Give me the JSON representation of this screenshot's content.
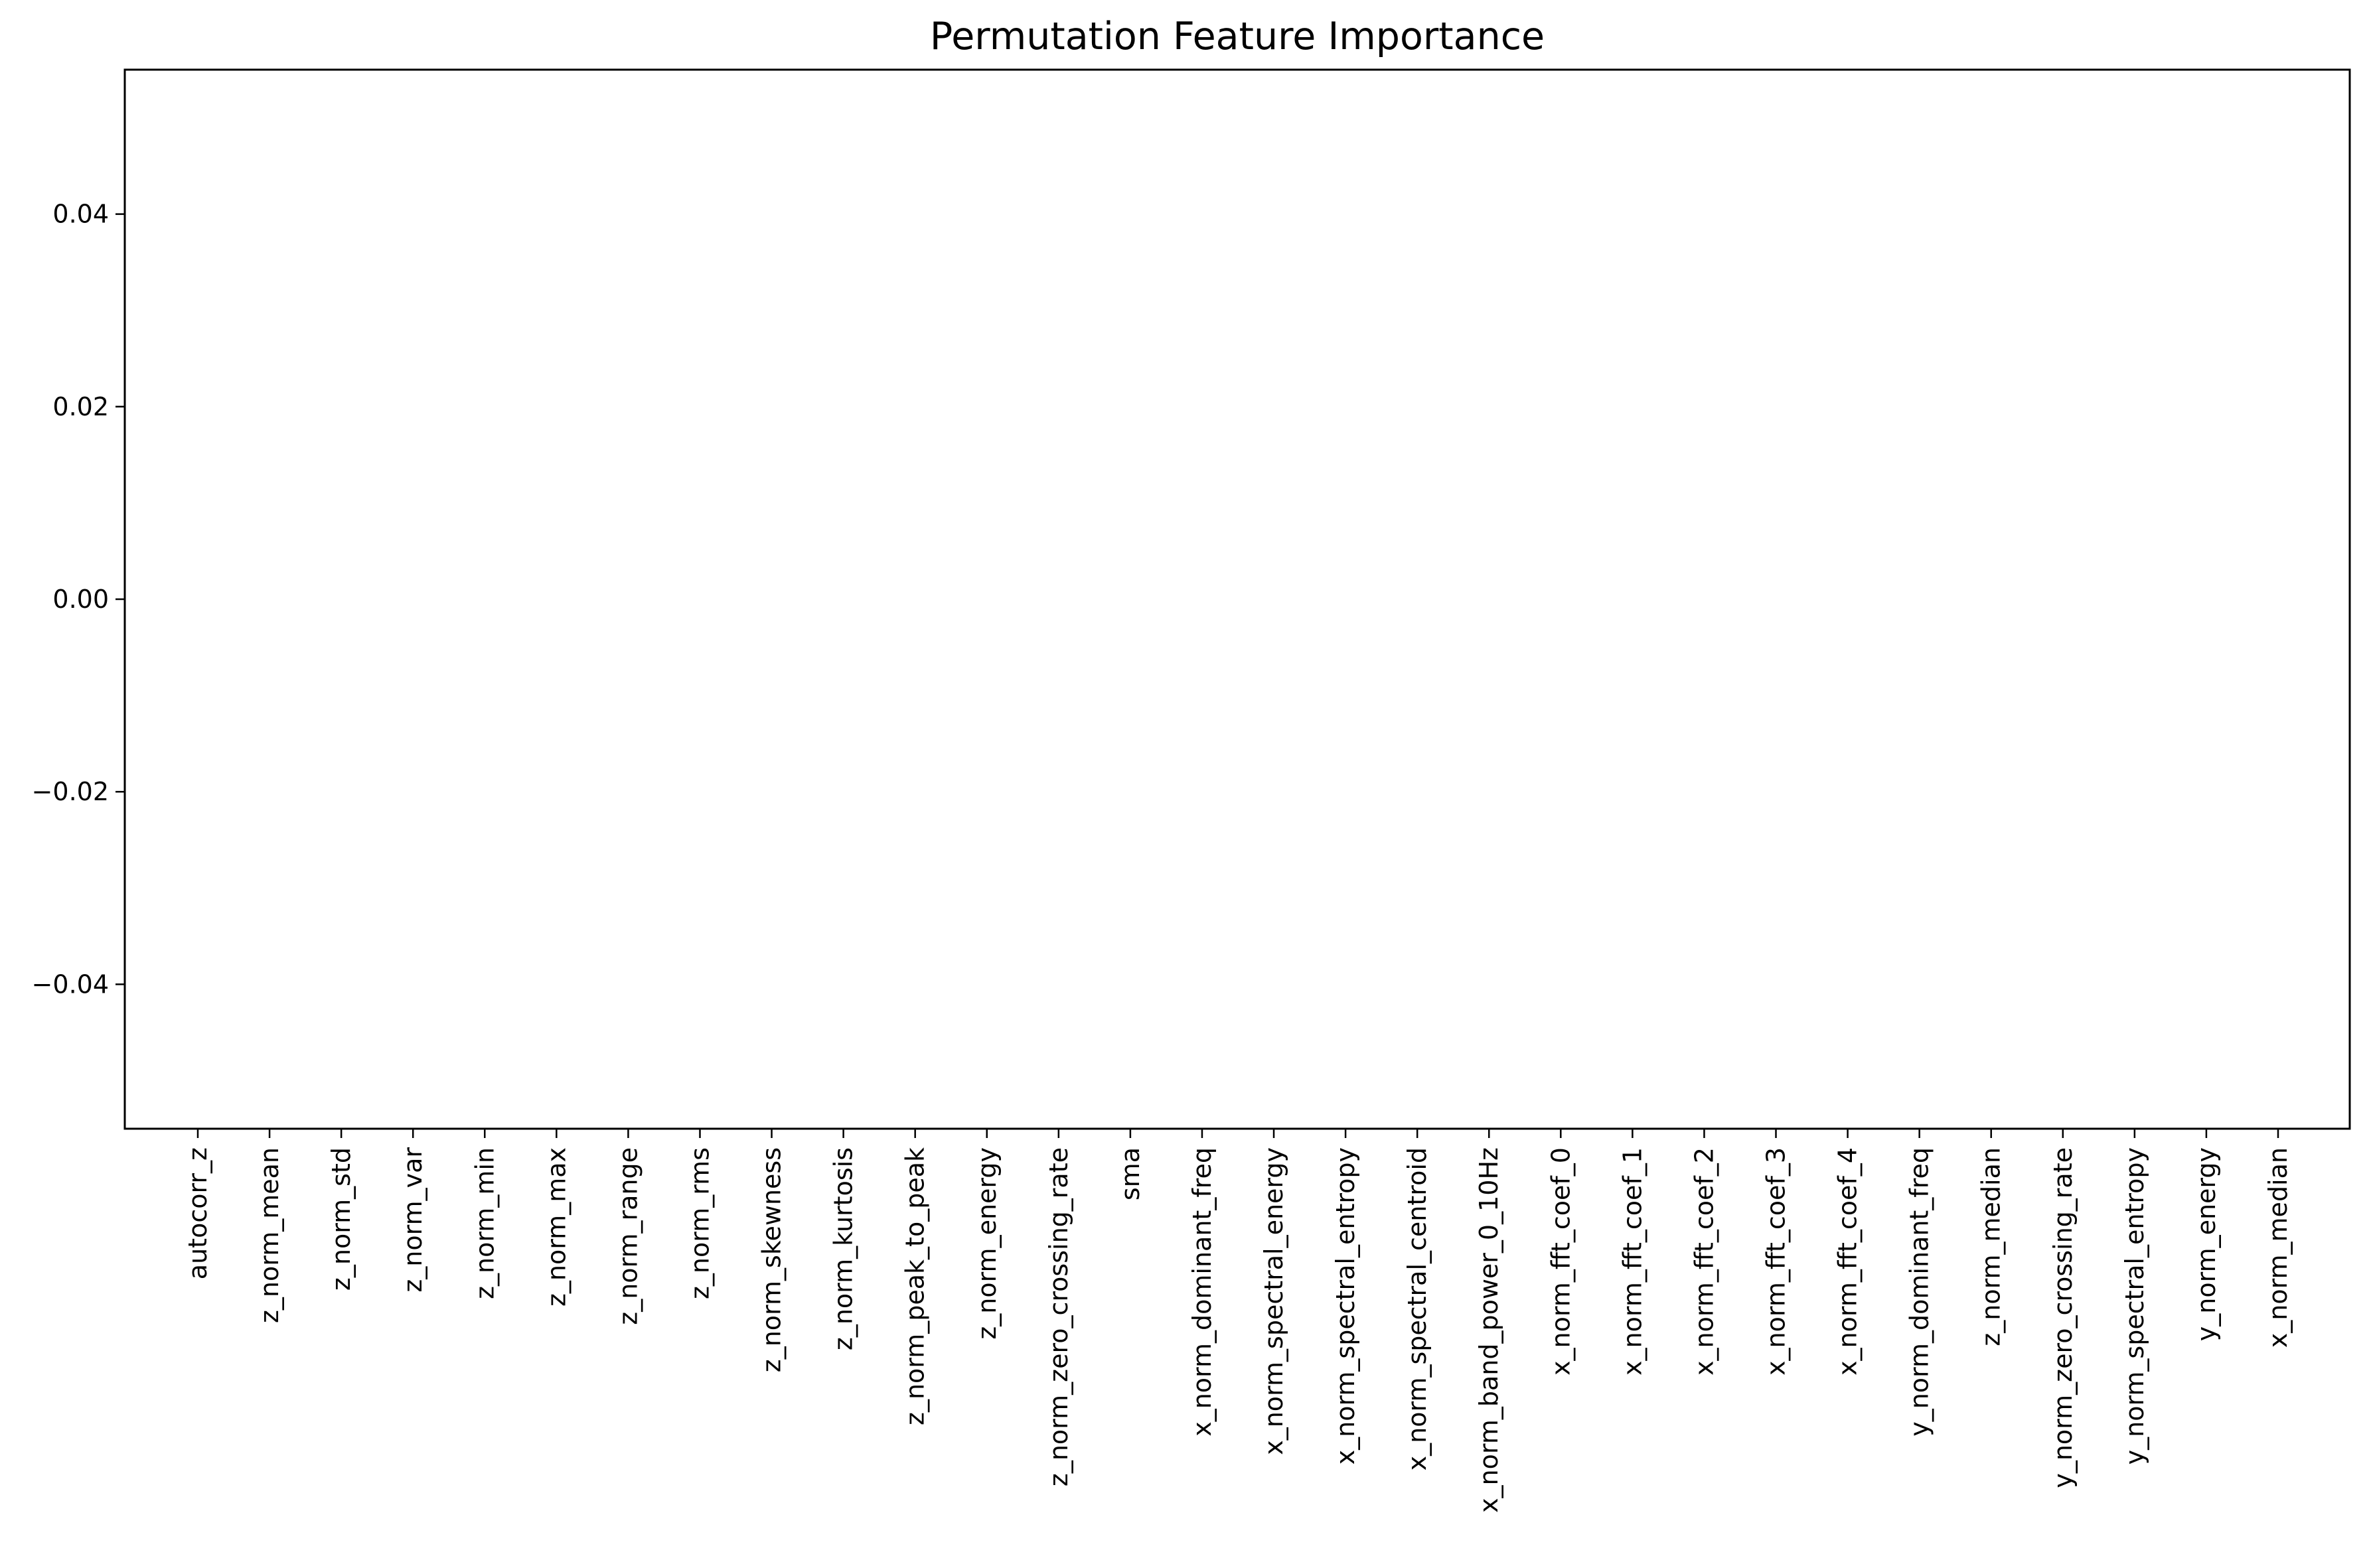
{
  "chart_data": {
    "type": "bar",
    "title": "Permutation Feature Importance",
    "xlabel": "",
    "ylabel": "",
    "categories": [
      "autocorr_z",
      "z_norm_mean",
      "z_norm_std",
      "z_norm_var",
      "z_norm_min",
      "z_norm_max",
      "z_norm_range",
      "z_norm_rms",
      "z_norm_skewness",
      "z_norm_kurtosis",
      "z_norm_peak_to_peak",
      "z_norm_energy",
      "z_norm_zero_crossing_rate",
      "sma",
      "x_norm_dominant_freq",
      "x_norm_spectral_energy",
      "x_norm_spectral_entropy",
      "x_norm_spectral_centroid",
      "x_norm_band_power_0_10Hz",
      "x_norm_fft_coef_0",
      "x_norm_fft_coef_1",
      "x_norm_fft_coef_2",
      "x_norm_fft_coef_3",
      "x_norm_fft_coef_4",
      "y_norm_dominant_freq",
      "z_norm_median",
      "y_norm_zero_crossing_rate",
      "y_norm_spectral_entropy",
      "y_norm_energy",
      "x_norm_median"
    ],
    "values": [
      0,
      0,
      0,
      0,
      0,
      0,
      0,
      0,
      0,
      0,
      0,
      0,
      0,
      0,
      0,
      0,
      0,
      0,
      0,
      0,
      0,
      0,
      0,
      0,
      0,
      0,
      0,
      0,
      0,
      0
    ],
    "ylim": [
      -0.055,
      0.055
    ],
    "yticks": [
      -0.04,
      -0.02,
      0.0,
      0.02,
      0.04
    ],
    "ytick_labels": [
      "−0.04",
      "−0.02",
      "0.00",
      "0.02",
      "0.04"
    ],
    "grid": false,
    "legend": "none",
    "bar_color": "#1f77b4",
    "x_tick_rotation": "vertical"
  }
}
